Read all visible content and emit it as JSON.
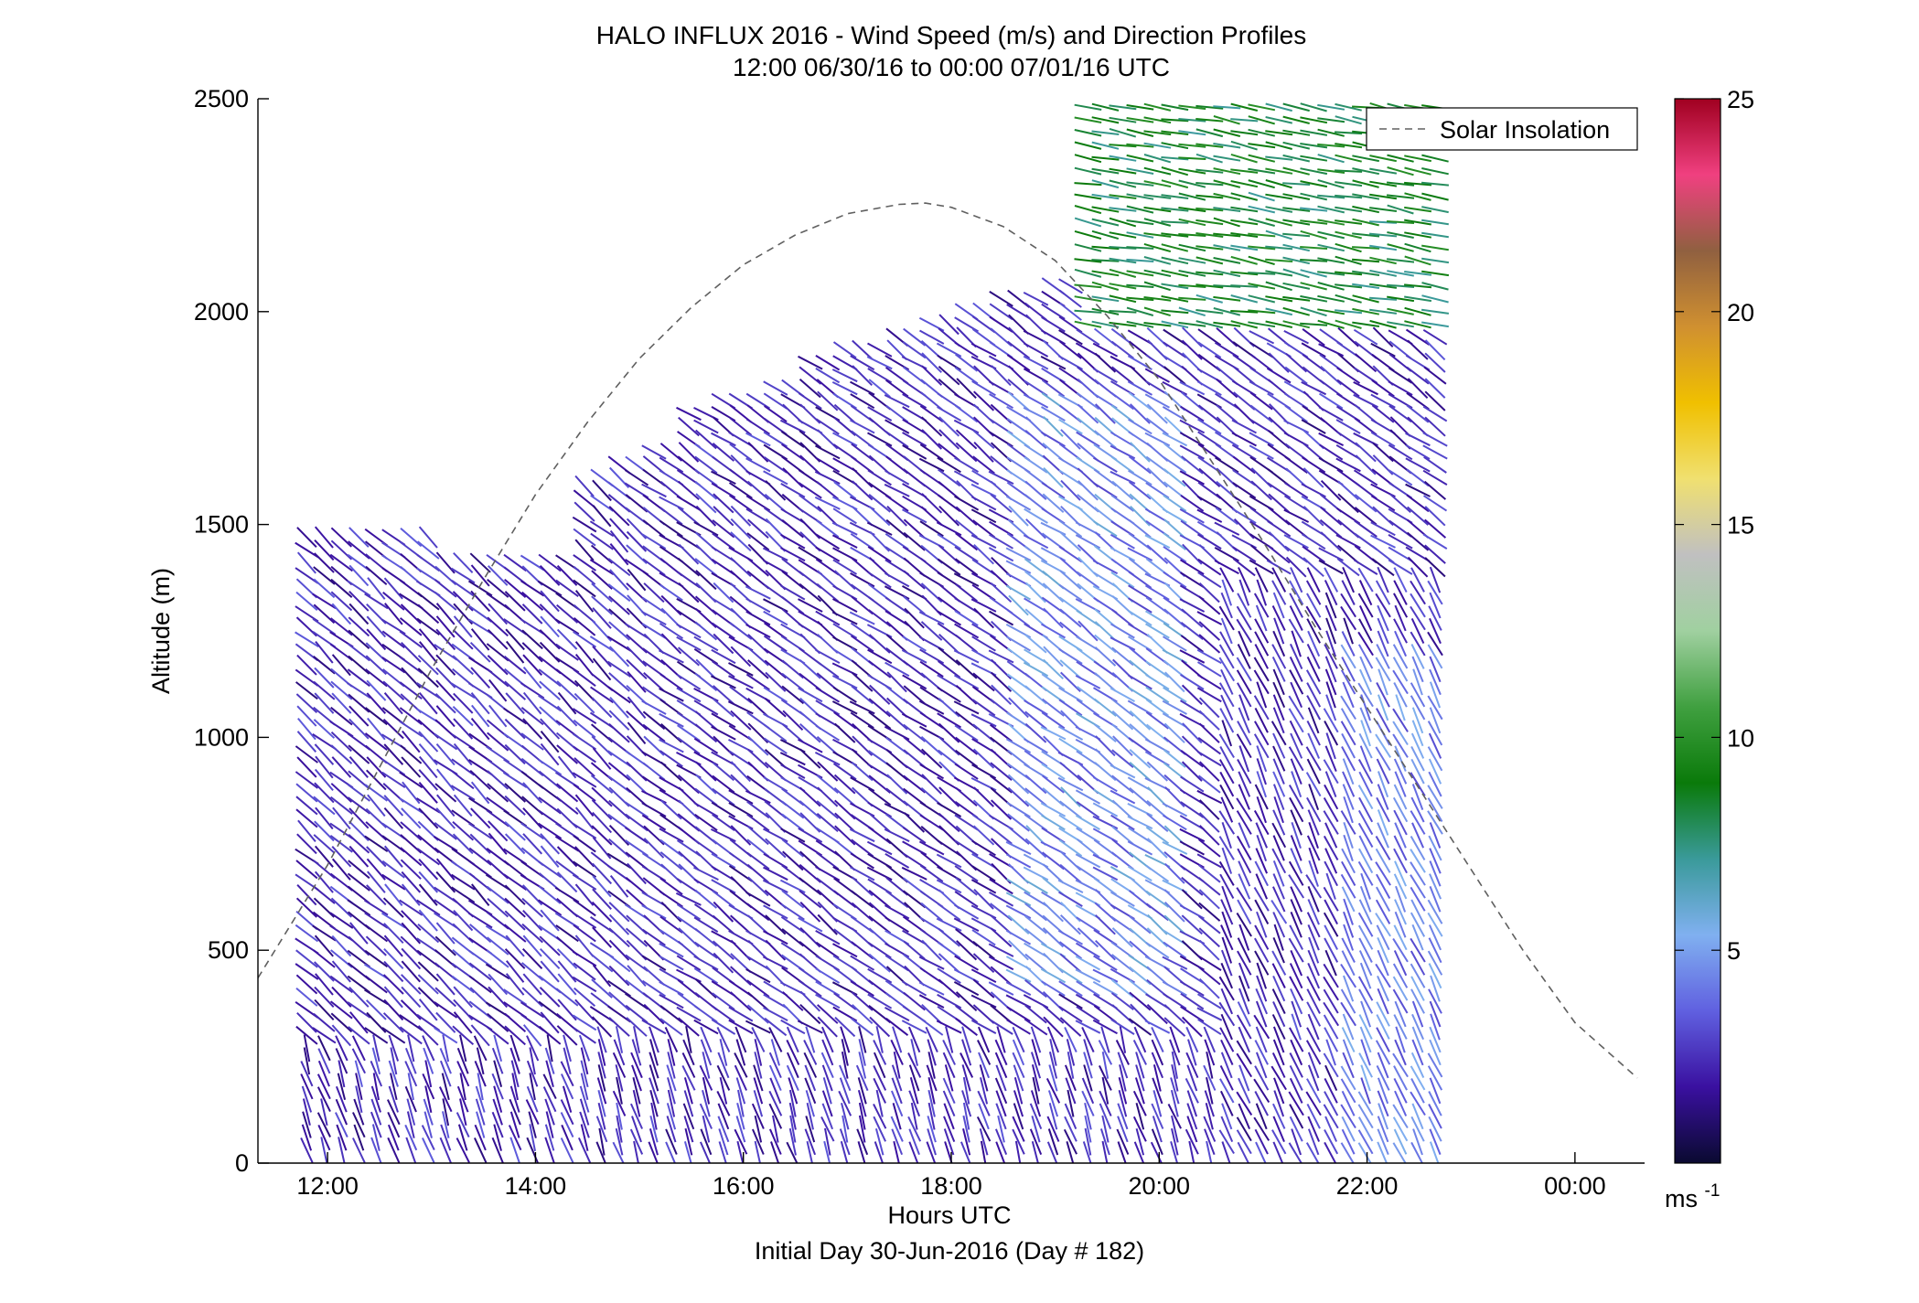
{
  "chart_data": {
    "type": "heatmap",
    "title": "HALO INFLUX 2016 - Wind Speed (m/s) and Direction Profiles",
    "subtitle": "12:00 06/30/16 to 00:00 07/01/16  UTC",
    "xlabel": "Hours UTC",
    "xlabel2": "Initial Day 30-Jun-2016 (Day # 182)",
    "ylabel": "Altitude (m)",
    "xlim": [
      11.33,
      24.67
    ],
    "ylim": [
      0,
      2500
    ],
    "x_tick_labels": [
      "12:00",
      "14:00",
      "16:00",
      "18:00",
      "20:00",
      "22:00",
      "00:00"
    ],
    "x_tick_hours": [
      12,
      14,
      16,
      18,
      20,
      22,
      24
    ],
    "y_ticks": [
      0,
      500,
      1000,
      1500,
      2000,
      2500
    ],
    "legend": {
      "label": "Solar Insolation",
      "placement": "top-right"
    },
    "colorbar": {
      "range": [
        0,
        25
      ],
      "ticks": [
        5,
        10,
        15,
        20,
        25
      ],
      "unit": "ms",
      "unit_exponent": "-1",
      "colormap": [
        "#0a0a30",
        "#3a10a0",
        "#6060e0",
        "#80b0f0",
        "#3a9a9a",
        "#0a7a0a",
        "#40a040",
        "#a0d0a0",
        "#c0c0c0",
        "#f0e070",
        "#f0c000",
        "#d09030",
        "#906040",
        "#f04080",
        "#a00020"
      ]
    },
    "series": [
      {
        "name": "Solar Insolation",
        "style": "dashed",
        "x": [
          11.33,
          12,
          12.5,
          13,
          13.5,
          14,
          14.5,
          15,
          15.5,
          16,
          16.5,
          17,
          17.5,
          17.75,
          18,
          18.5,
          19,
          19.5,
          20,
          20.5,
          21,
          21.5,
          22,
          22.5,
          23,
          23.5,
          24,
          24.6
        ],
        "y": [
          435,
          700,
          930,
          1160,
          1370,
          1570,
          1740,
          1890,
          2010,
          2110,
          2180,
          2230,
          2252,
          2255,
          2245,
          2200,
          2120,
          1990,
          1840,
          1650,
          1460,
          1260,
          1070,
          880,
          690,
          500,
          330,
          200
        ]
      }
    ],
    "wind_barbs": {
      "time_start_hour": 11.8,
      "time_end_hour": 22.8,
      "time_step_hour": 0.167,
      "altitude_step_m": 30,
      "speed_range": [
        0.5,
        12.5
      ]
    }
  }
}
